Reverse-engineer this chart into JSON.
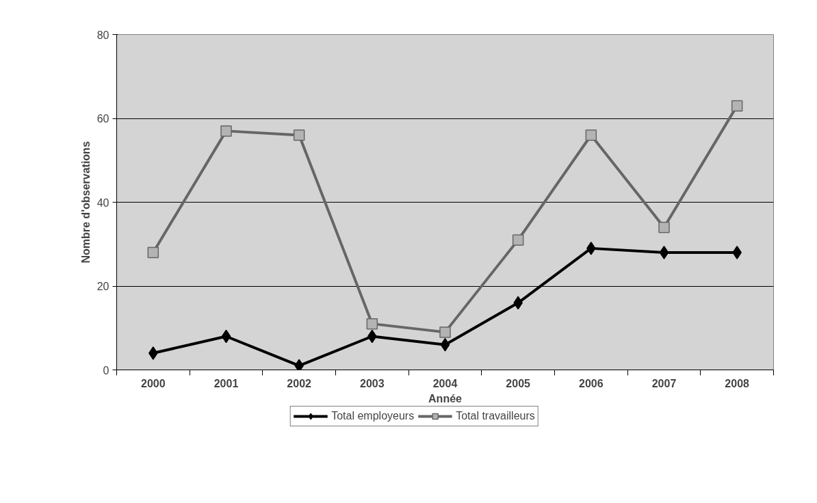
{
  "chart_data": {
    "type": "line",
    "xlabel": "Année",
    "ylabel": "Nombre d'observations",
    "categories": [
      "2000",
      "2001",
      "2002",
      "2003",
      "2004",
      "2005",
      "2006",
      "2007",
      "2008"
    ],
    "series": [
      {
        "name": "Total employeurs",
        "color": "#000000",
        "marker": "diamond",
        "values": [
          4,
          8,
          1,
          8,
          6,
          16,
          29,
          28,
          28
        ]
      },
      {
        "name": "Total travailleurs",
        "color": "#666666",
        "marker": "square",
        "values": [
          28,
          57,
          56,
          11,
          9,
          31,
          56,
          34,
          63
        ]
      }
    ],
    "ylim": [
      0,
      80
    ],
    "yticks": [
      0,
      20,
      40,
      60,
      80
    ],
    "grid": "y",
    "legend": "bottom"
  }
}
